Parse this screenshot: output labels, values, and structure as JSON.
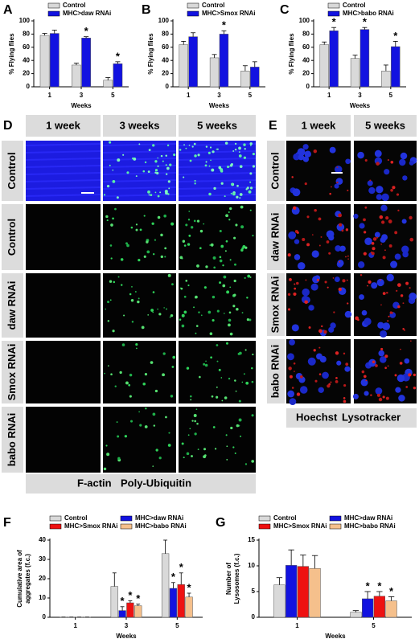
{
  "chart_data": [
    {
      "type": "bar",
      "panel": "A",
      "ylabel": "% Flying flies",
      "xlabel": "Weeks",
      "categories": [
        "1",
        "3",
        "5"
      ],
      "ylim": [
        0,
        100
      ],
      "yticks": [
        0,
        20,
        40,
        60,
        80,
        100
      ],
      "series": [
        {
          "name": "Control",
          "color": "#d9d9d9",
          "values": [
            78,
            33,
            10
          ],
          "errors": [
            3,
            3,
            4
          ]
        },
        {
          "name": "MHC>daw RNAi",
          "color": "#1212e0",
          "values": [
            81,
            74,
            35
          ],
          "errors": [
            5,
            2,
            3
          ],
          "markers": [
            null,
            "*",
            "*"
          ]
        }
      ]
    },
    {
      "type": "bar",
      "panel": "B",
      "ylabel": "% Flying flies",
      "xlabel": "Weeks",
      "categories": [
        "1",
        "3",
        "5"
      ],
      "ylim": [
        0,
        100
      ],
      "yticks": [
        0,
        20,
        40,
        60,
        80,
        100
      ],
      "series": [
        {
          "name": "Control",
          "color": "#d9d9d9",
          "values": [
            64,
            44,
            24
          ],
          "errors": [
            5,
            5,
            8
          ]
        },
        {
          "name": "MHC>Smox RNAi",
          "color": "#1212e0",
          "values": [
            76,
            80,
            30
          ],
          "errors": [
            6,
            5,
            8
          ],
          "markers": [
            null,
            "*",
            null
          ]
        }
      ]
    },
    {
      "type": "bar",
      "panel": "C",
      "ylabel": "% Flying flies",
      "xlabel": "Weeks",
      "categories": [
        "1",
        "3",
        "5"
      ],
      "ylim": [
        0,
        100
      ],
      "yticks": [
        0,
        20,
        40,
        60,
        80,
        100
      ],
      "series": [
        {
          "name": "Control",
          "color": "#d9d9d9",
          "values": [
            64,
            43,
            24
          ],
          "errors": [
            4,
            5,
            9
          ]
        },
        {
          "name": "MHC>babo RNAi",
          "color": "#1212e0",
          "values": [
            85,
            87,
            61
          ],
          "errors": [
            5,
            3,
            8
          ],
          "markers": [
            "*",
            "*",
            "*"
          ]
        }
      ]
    },
    {
      "type": "bar",
      "panel": "F",
      "ylabel": "Cumulative area of aggregates (f.c.)",
      "xlabel": "Weeks",
      "categories": [
        "1",
        "3",
        "5"
      ],
      "ylim": [
        0,
        40
      ],
      "yticks": [
        0,
        10,
        20,
        30,
        40
      ],
      "series": [
        {
          "name": "Control",
          "color": "#d9d9d9",
          "values": [
            0.1,
            16,
            33
          ],
          "errors": [
            0,
            7,
            7
          ]
        },
        {
          "name": "MHC>daw RNAi",
          "color": "#1212e0",
          "values": [
            0.1,
            3.5,
            15
          ],
          "errors": [
            0,
            2,
            3
          ],
          "markers": [
            null,
            "*",
            "*"
          ]
        },
        {
          "name": "MHC>Smox RNAi",
          "color": "#ee1111",
          "values": [
            0.1,
            7.5,
            17
          ],
          "errors": [
            0,
            1,
            6
          ],
          "markers": [
            null,
            "*",
            "*"
          ]
        },
        {
          "name": "MHC>babo RNAi",
          "color": "#f5c08c",
          "values": [
            0.1,
            6,
            10.5
          ],
          "errors": [
            0,
            0.8,
            2
          ],
          "markers": [
            null,
            "*",
            "*"
          ]
        }
      ]
    },
    {
      "type": "bar",
      "panel": "G",
      "ylabel": "Number of Lysosomes (f.c.)",
      "xlabel": "Weeks",
      "categories": [
        "1",
        "5"
      ],
      "ylim": [
        0,
        15
      ],
      "yticks": [
        0,
        5,
        10,
        15
      ],
      "series": [
        {
          "name": "Control",
          "color": "#d9d9d9",
          "values": [
            6.3,
            1
          ],
          "errors": [
            1.4,
            0.3
          ]
        },
        {
          "name": "MHC>daw RNAi",
          "color": "#1212e0",
          "values": [
            10.1,
            3.6
          ],
          "errors": [
            3,
            1.4
          ],
          "markers": [
            null,
            "*"
          ]
        },
        {
          "name": "MHC>Smox RNAi",
          "color": "#ee1111",
          "values": [
            9.9,
            4.1
          ],
          "errors": [
            2.2,
            0.9
          ],
          "markers": [
            null,
            "*"
          ]
        },
        {
          "name": "MHC>babo RNAi",
          "color": "#f5c08c",
          "values": [
            9.5,
            3.2
          ],
          "errors": [
            2.5,
            0.8
          ],
          "markers": [
            null,
            "*"
          ]
        }
      ]
    }
  ],
  "figures": {
    "panel_d": {
      "panel": "D",
      "columns": [
        "1 week",
        "3 weeks",
        "5 weeks"
      ],
      "rows": [
        "Control",
        "Control",
        "daw RNAi",
        "Smox RNAi",
        "babo RNAi"
      ],
      "legend": [
        "F-actin",
        "Poly-Ubiquitin"
      ]
    },
    "panel_e": {
      "panel": "E",
      "columns": [
        "1 week",
        "5 weeks"
      ],
      "rows": [
        "Control",
        "daw RNAi",
        "Smox RNAi",
        "babo RNAi"
      ],
      "legend": [
        "Hoechst",
        "Lysotracker"
      ]
    }
  }
}
